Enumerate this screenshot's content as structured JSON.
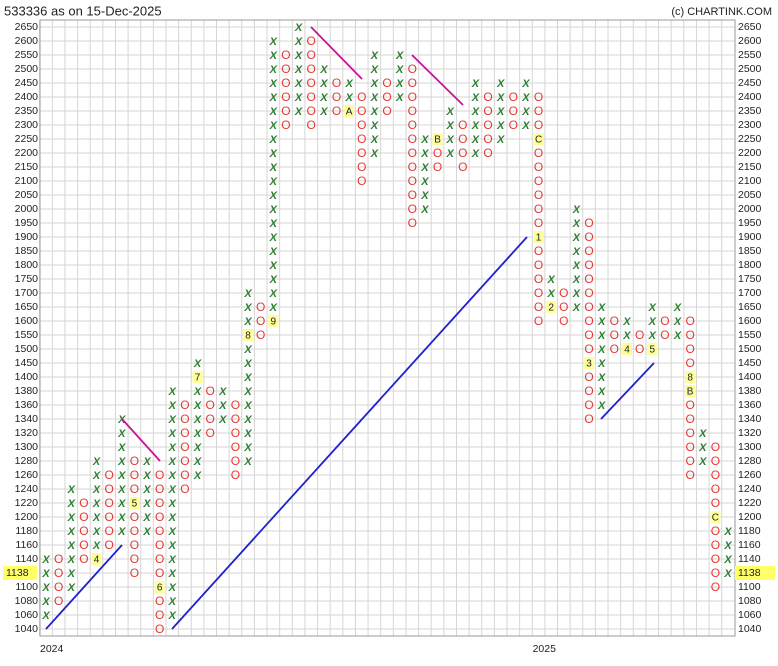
{
  "chart_data": {
    "type": "point-and-figure",
    "title": "533336 as on 15-Dec-2025",
    "credit": "(c) CHARTINK.COM",
    "levels": [
      1040,
      1060,
      1080,
      1100,
      1120,
      1140,
      1160,
      1180,
      1200,
      1220,
      1240,
      1260,
      1280,
      1300,
      1320,
      1340,
      1360,
      1380,
      1400,
      1450,
      1500,
      1550,
      1600,
      1650,
      1700,
      1750,
      1800,
      1850,
      1900,
      1950,
      2000,
      2050,
      2100,
      2150,
      2200,
      2250,
      2300,
      2350,
      2400,
      2450,
      2500,
      2550,
      2600,
      2650
    ],
    "yticks": [
      1040,
      1060,
      1080,
      1100,
      1140,
      1160,
      1180,
      1200,
      1220,
      1240,
      1260,
      1280,
      1300,
      1320,
      1340,
      1360,
      1380,
      1400,
      1450,
      1500,
      1550,
      1600,
      1650,
      1700,
      1750,
      1800,
      1850,
      1900,
      1950,
      2000,
      2050,
      2100,
      2150,
      2200,
      2250,
      2300,
      2350,
      2400,
      2450,
      2500,
      2550,
      2600,
      2650
    ],
    "last_price": 1138,
    "x_labels": [
      {
        "column": 0,
        "label": "2024"
      },
      {
        "column": 39,
        "label": "2025"
      }
    ],
    "colors": {
      "X": "#2e7d32",
      "O": "#e53935"
    },
    "columns": [
      {
        "type": "X",
        "from": 1060,
        "to": 1140
      },
      {
        "type": "O",
        "from": 1140,
        "to": 1080
      },
      {
        "type": "X",
        "from": 1100,
        "to": 1240
      },
      {
        "type": "O",
        "from": 1220,
        "to": 1140
      },
      {
        "type": "X",
        "from": 1140,
        "to": 1280,
        "markers": [
          {
            "price": 1140,
            "label": "4"
          }
        ]
      },
      {
        "type": "O",
        "from": 1260,
        "to": 1160
      },
      {
        "type": "X",
        "from": 1180,
        "to": 1340
      },
      {
        "type": "O",
        "from": 1280,
        "to": 1120,
        "markers": [
          {
            "price": 1220,
            "label": "5"
          }
        ]
      },
      {
        "type": "X",
        "from": 1180,
        "to": 1280
      },
      {
        "type": "O",
        "from": 1260,
        "to": 1040,
        "markers": [
          {
            "price": 1100,
            "label": "6"
          }
        ]
      },
      {
        "type": "X",
        "from": 1060,
        "to": 1380
      },
      {
        "type": "O",
        "from": 1360,
        "to": 1240
      },
      {
        "type": "X",
        "from": 1260,
        "to": 1450,
        "markers": [
          {
            "price": 1400,
            "label": "7"
          }
        ]
      },
      {
        "type": "O",
        "from": 1380,
        "to": 1320
      },
      {
        "type": "X",
        "from": 1340,
        "to": 1380
      },
      {
        "type": "O",
        "from": 1360,
        "to": 1260
      },
      {
        "type": "X",
        "from": 1280,
        "to": 1700,
        "markers": [
          {
            "price": 1550,
            "label": "8"
          }
        ]
      },
      {
        "type": "O",
        "from": 1650,
        "to": 1550
      },
      {
        "type": "X",
        "from": 1600,
        "to": 2600,
        "markers": [
          {
            "price": 1600,
            "label": "9"
          }
        ]
      },
      {
        "type": "O",
        "from": 2550,
        "to": 2300
      },
      {
        "type": "X",
        "from": 2350,
        "to": 2650
      },
      {
        "type": "O",
        "from": 2600,
        "to": 2300
      },
      {
        "type": "X",
        "from": 2350,
        "to": 2500
      },
      {
        "type": "O",
        "from": 2450,
        "to": 2350
      },
      {
        "type": "X",
        "from": 2350,
        "to": 2450,
        "markers": [
          {
            "price": 2350,
            "label": "A"
          }
        ]
      },
      {
        "type": "O",
        "from": 2400,
        "to": 2100
      },
      {
        "type": "X",
        "from": 2200,
        "to": 2550
      },
      {
        "type": "O",
        "from": 2450,
        "to": 2350
      },
      {
        "type": "X",
        "from": 2400,
        "to": 2550
      },
      {
        "type": "O",
        "from": 2500,
        "to": 1950
      },
      {
        "type": "X",
        "from": 2000,
        "to": 2250
      },
      {
        "type": "O",
        "from": 2250,
        "to": 2150,
        "markers": [
          {
            "price": 2250,
            "label": "B"
          }
        ]
      },
      {
        "type": "X",
        "from": 2200,
        "to": 2350
      },
      {
        "type": "O",
        "from": 2300,
        "to": 2150
      },
      {
        "type": "X",
        "from": 2200,
        "to": 2450
      },
      {
        "type": "O",
        "from": 2400,
        "to": 2200
      },
      {
        "type": "X",
        "from": 2250,
        "to": 2450
      },
      {
        "type": "O",
        "from": 2400,
        "to": 2300
      },
      {
        "type": "X",
        "from": 2300,
        "to": 2450
      },
      {
        "type": "O",
        "from": 2400,
        "to": 1600,
        "markers": [
          {
            "price": 2250,
            "label": "C"
          },
          {
            "price": 1900,
            "label": "1"
          }
        ]
      },
      {
        "type": "X",
        "from": 1650,
        "to": 1750,
        "markers": [
          {
            "price": 1650,
            "label": "2"
          }
        ]
      },
      {
        "type": "O",
        "from": 1700,
        "to": 1600
      },
      {
        "type": "X",
        "from": 1650,
        "to": 2000
      },
      {
        "type": "O",
        "from": 1950,
        "to": 1340,
        "markers": [
          {
            "price": 1450,
            "label": "3"
          }
        ]
      },
      {
        "type": "X",
        "from": 1360,
        "to": 1650
      },
      {
        "type": "O",
        "from": 1600,
        "to": 1500
      },
      {
        "type": "X",
        "from": 1500,
        "to": 1600,
        "markers": [
          {
            "price": 1500,
            "label": "4"
          }
        ]
      },
      {
        "type": "O",
        "from": 1550,
        "to": 1500
      },
      {
        "type": "X",
        "from": 1500,
        "to": 1650,
        "markers": [
          {
            "price": 1500,
            "label": "5"
          }
        ]
      },
      {
        "type": "O",
        "from": 1600,
        "to": 1550
      },
      {
        "type": "X",
        "from": 1550,
        "to": 1650
      },
      {
        "type": "O",
        "from": 1600,
        "to": 1260,
        "markers": [
          {
            "price": 1400,
            "label": "8"
          },
          {
            "price": 1380,
            "label": "B"
          }
        ]
      },
      {
        "type": "X",
        "from": 1280,
        "to": 1320
      },
      {
        "type": "O",
        "from": 1300,
        "to": 1100,
        "markers": [
          {
            "price": 1200,
            "label": "C"
          }
        ]
      },
      {
        "type": "X",
        "from": 1120,
        "to": 1180
      }
    ]
  }
}
